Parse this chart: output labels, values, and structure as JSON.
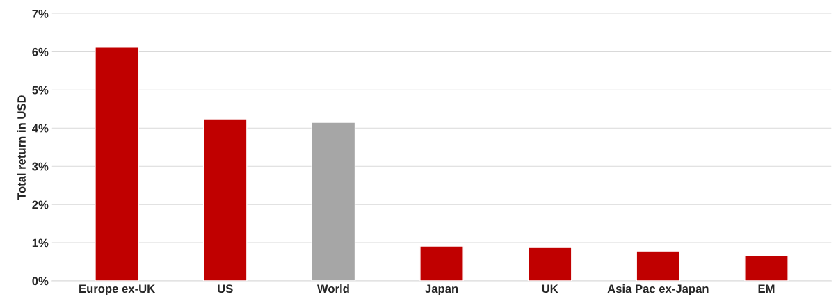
{
  "chart_data": {
    "type": "bar",
    "ylabel": "Total return in USD",
    "categories": [
      "Europe ex-UK",
      "US",
      "World",
      "Japan",
      "UK",
      "Asia Pac ex-Japan",
      "EM"
    ],
    "values": [
      6.12,
      4.24,
      4.15,
      0.91,
      0.89,
      0.78,
      0.67
    ],
    "colors": [
      "#c00000",
      "#c00000",
      "#a6a6a6",
      "#c00000",
      "#c00000",
      "#c00000",
      "#c00000"
    ],
    "ylim": [
      0,
      7
    ],
    "yticks": [
      {
        "value": 0,
        "label": "0%"
      },
      {
        "value": 1,
        "label": "1%"
      },
      {
        "value": 2,
        "label": "2%"
      },
      {
        "value": 3,
        "label": "3%"
      },
      {
        "value": 4,
        "label": "4%"
      },
      {
        "value": 5,
        "label": "5%"
      },
      {
        "value": 6,
        "label": "6%"
      },
      {
        "value": 7,
        "label": "7%"
      }
    ],
    "grid": "y",
    "legend": false
  }
}
